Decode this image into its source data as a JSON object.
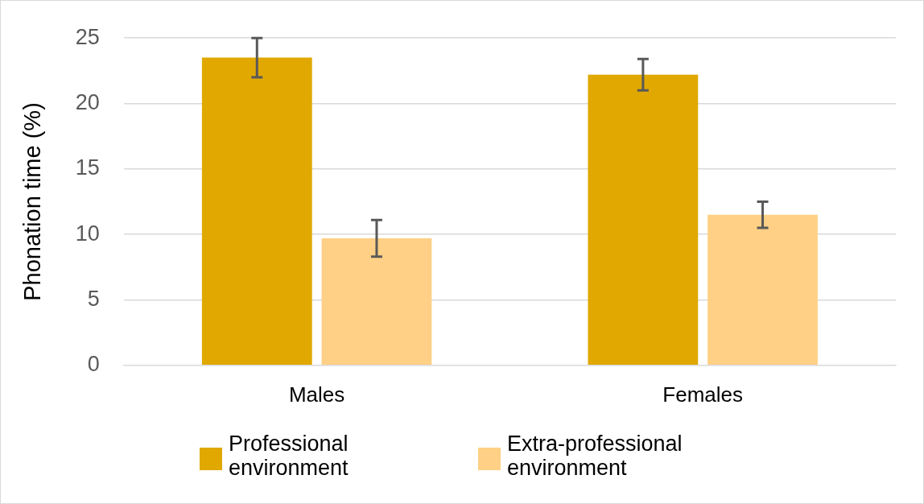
{
  "chart_data": {
    "type": "bar",
    "ylabel": "Phonation time (%)",
    "categories": [
      "Males",
      "Females"
    ],
    "series": [
      {
        "name": "Professional environment",
        "color": "#e0a800",
        "values": [
          23.5,
          22.2
        ],
        "errors": [
          1.5,
          1.2
        ]
      },
      {
        "name": "Extra-professional environment",
        "color": "#ffd085",
        "values": [
          9.7,
          11.5
        ],
        "errors": [
          1.4,
          1.0
        ]
      }
    ],
    "ylim": [
      0,
      25
    ],
    "yticks": [
      0,
      5,
      10,
      15,
      20,
      25
    ],
    "grid": "y",
    "legend": "bottom"
  }
}
